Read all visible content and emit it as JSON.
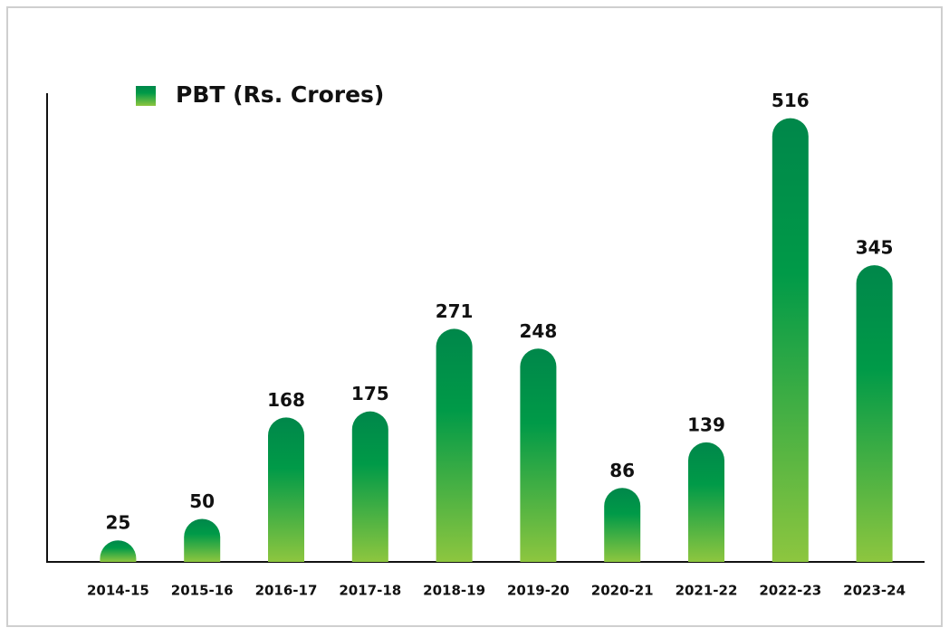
{
  "chart_data": {
    "type": "bar",
    "categories": [
      "2014-15",
      "2015-16",
      "2016-17",
      "2017-18",
      "2018-19",
      "2019-20",
      "2020-21",
      "2021-22",
      "2022-23",
      "2023-24"
    ],
    "series": [
      {
        "name": "PBT (Rs. Crores)",
        "color": "#00934a",
        "values": [
          25,
          50,
          168,
          175,
          271,
          248,
          86,
          139,
          516,
          345
        ]
      }
    ],
    "ylim": [
      0,
      545
    ]
  }
}
